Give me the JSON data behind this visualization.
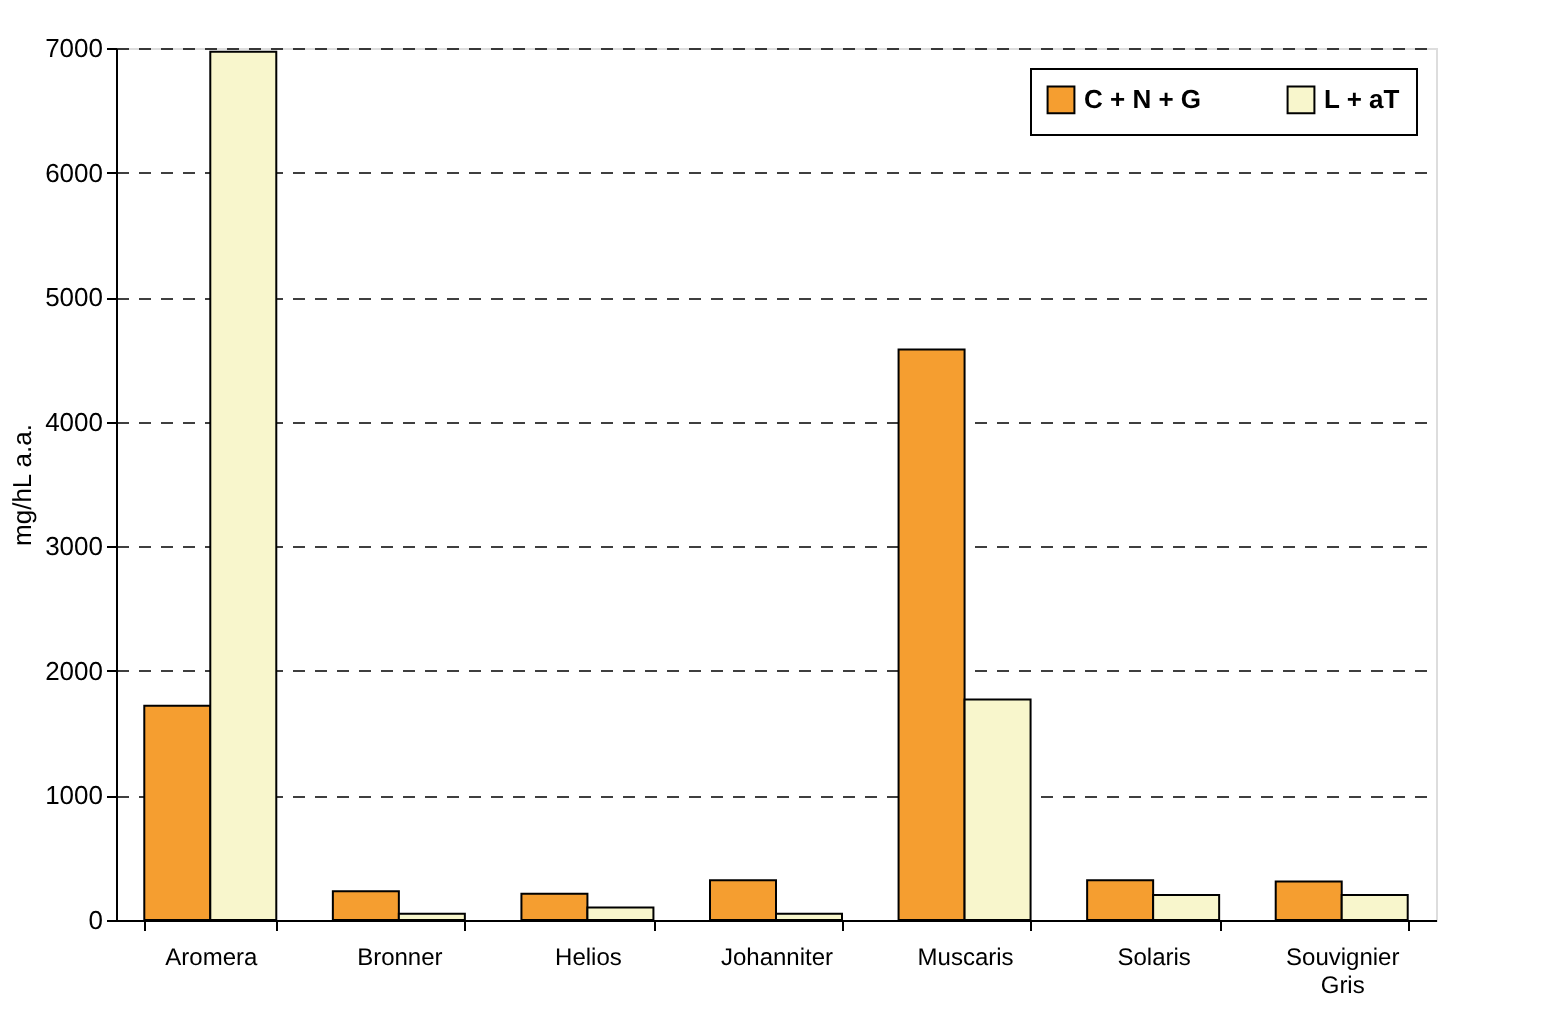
{
  "chart_data": {
    "type": "bar",
    "ylabel": "mg/hL a.a.",
    "categories": [
      "Aromera",
      "Bronner",
      "Helios",
      "Johanniter",
      "Muscaris",
      "Solaris",
      "Souvignier Gris"
    ],
    "series": [
      {
        "name": "C + N + G",
        "color": "#f59e30",
        "values": [
          1720,
          230,
          210,
          320,
          4580,
          320,
          310
        ]
      },
      {
        "name": "L + aT",
        "color": "#f8f6cc",
        "values": [
          6970,
          50,
          100,
          50,
          1770,
          200,
          200
        ]
      }
    ],
    "ylim": [
      0,
      7000
    ],
    "yticks": [
      0,
      1000,
      2000,
      3000,
      4000,
      5000,
      6000,
      7000
    ],
    "grid": "y",
    "legend": "top right"
  }
}
